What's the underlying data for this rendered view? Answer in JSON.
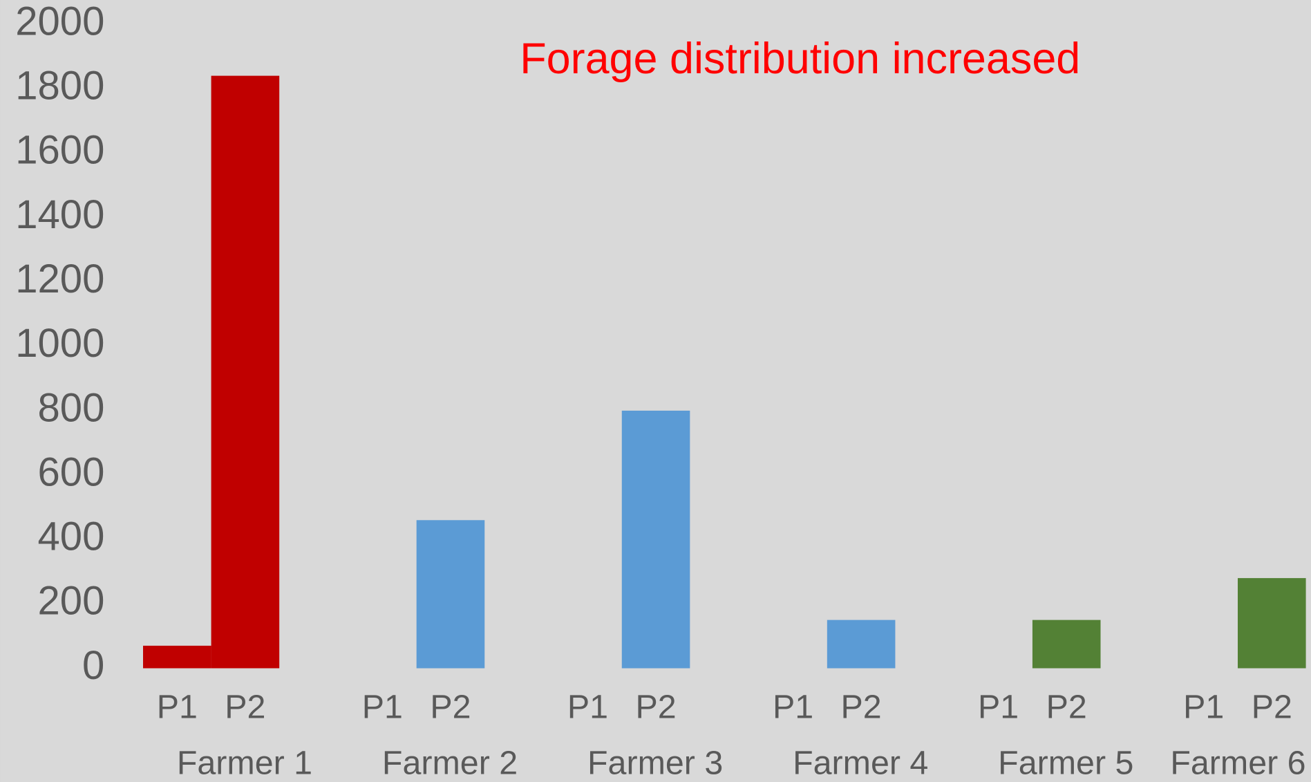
{
  "chart_data": {
    "type": "bar",
    "title": "Forage distribution increased",
    "ylim": [
      0,
      2000
    ],
    "yticks": [
      0,
      200,
      400,
      600,
      800,
      1000,
      1200,
      1400,
      1600,
      1800,
      2000
    ],
    "groups": [
      {
        "name": "Farmer 1",
        "color": "#c00000",
        "categories": [
          "P1",
          "P2"
        ],
        "values": [
          70,
          1840
        ]
      },
      {
        "name": "Farmer 2",
        "color": "#5b9bd5",
        "categories": [
          "P1",
          "P2"
        ],
        "values": [
          0,
          460
        ]
      },
      {
        "name": "Farmer 3",
        "color": "#5b9bd5",
        "categories": [
          "P1",
          "P2"
        ],
        "values": [
          0,
          800
        ]
      },
      {
        "name": "Farmer 4",
        "color": "#5b9bd5",
        "categories": [
          "P1",
          "P2"
        ],
        "values": [
          0,
          150
        ]
      },
      {
        "name": "Farmer 5",
        "color": "#538135",
        "categories": [
          "P1",
          "P2"
        ],
        "values": [
          0,
          150
        ]
      },
      {
        "name": "Farmer 6",
        "color": "#538135",
        "categories": [
          "P1",
          "P2"
        ],
        "values": [
          0,
          280
        ]
      }
    ]
  }
}
